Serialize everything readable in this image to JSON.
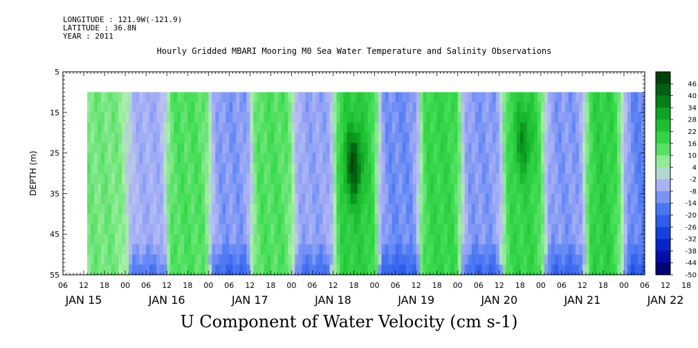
{
  "header": {
    "longitude": "LONGITUDE : 121.9W(-121.9)",
    "latitude": "LATITUDE : 36.8N",
    "year": "YEAR : 2011"
  },
  "chart_data": {
    "type": "heatmap",
    "title": "Hourly Gridded MBARI Mooring M0 Sea Water Temperature and Salinity Observations",
    "bottom_title": "U Component of Water Velocity (cm s-1)",
    "ylabel": "DEPTH (m)",
    "xlabel": "",
    "y_ticks": [
      5,
      15,
      25,
      35,
      45,
      55
    ],
    "ylim": [
      55,
      5
    ],
    "data_depth_range": [
      10,
      55
    ],
    "x_hour_ticks": [
      "06",
      "12",
      "18",
      "00",
      "06",
      "12",
      "18",
      "00",
      "06",
      "12",
      "18",
      "00",
      "06",
      "12",
      "18",
      "00",
      "06",
      "12",
      "18",
      "00",
      "06",
      "12",
      "18",
      "00",
      "06",
      "12",
      "18",
      "00",
      "06",
      "12",
      "18",
      "00",
      "06"
    ],
    "x_day_labels": [
      "JAN 15",
      "JAN 16",
      "JAN 17",
      "JAN 18",
      "JAN 19",
      "JAN 20",
      "JAN 21",
      "JAN 22"
    ],
    "x_range_hours_from_jan15_00": [
      6,
      174
    ],
    "data_start_hours_from_jan15_00": 13,
    "colorbar_levels": [
      46,
      40,
      34,
      28,
      22,
      16,
      10,
      4,
      -2,
      -8,
      -14,
      -20,
      -26,
      -32,
      -38,
      -44,
      -50
    ],
    "colorbar_range": [
      -50,
      50
    ],
    "bands": [
      {
        "center_hour": 20,
        "value": 10
      },
      {
        "center_hour": 29,
        "value": -6
      },
      {
        "center_hour": 43,
        "value": 14
      },
      {
        "center_hour": 54,
        "value": -10
      },
      {
        "center_hour": 67,
        "value": 14
      },
      {
        "center_hour": 78,
        "value": -8
      },
      {
        "center_hour": 91,
        "value": 20
      },
      {
        "center_hour": 103,
        "value": -12
      },
      {
        "center_hour": 115,
        "value": 18
      },
      {
        "center_hour": 127,
        "value": -10
      },
      {
        "center_hour": 139,
        "value": 18
      },
      {
        "center_hour": 151,
        "value": -10
      },
      {
        "center_hour": 163,
        "value": 20
      },
      {
        "center_hour": 172,
        "value": -14
      }
    ],
    "hotspots": [
      {
        "hour": 90,
        "depth": 28,
        "value": 46
      },
      {
        "hour": 139,
        "depth": 22,
        "value": 34
      }
    ]
  }
}
